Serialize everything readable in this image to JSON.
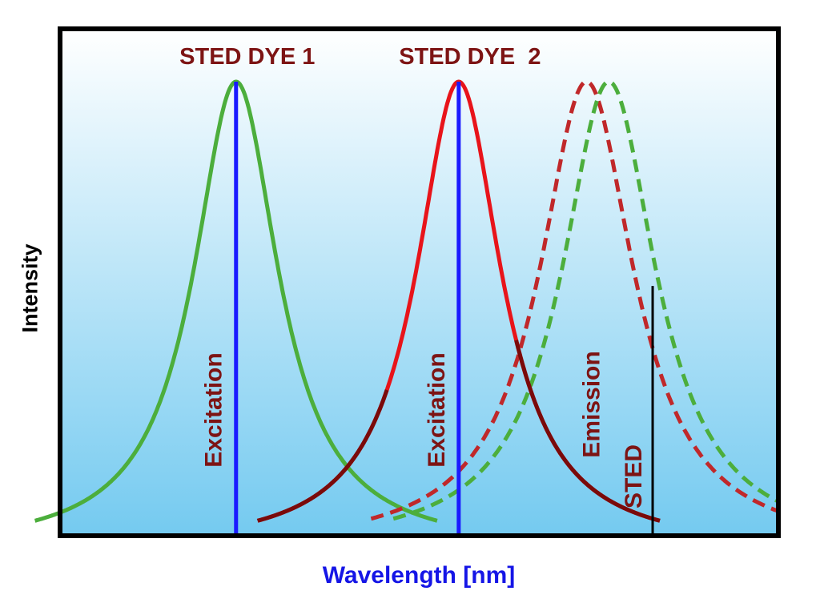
{
  "chart_data": {
    "type": "line",
    "title": "",
    "xlabel": "Wavelength [nm]",
    "ylabel": "Intensity",
    "xlim": [
      0,
      100
    ],
    "ylim": [
      0,
      100
    ],
    "grid": false,
    "legend": "none",
    "colors": {
      "background_top": "#ffffff",
      "background_bottom": "#74caf0",
      "axis": "#000000",
      "dye1": "#4cae3c",
      "dye2_absorption": "#e8141a",
      "dye2_tail": "#7a0a0a",
      "dye2_emission": "#c0282a",
      "dye1_emission": "#4cae3c",
      "laser": "#1a1aff",
      "sted_line": "#000000",
      "label": "#7d1414",
      "xlabel": "#1515e6"
    },
    "series": [
      {
        "name": "STED DYE 1 absorption",
        "style": "solid",
        "peak_x": 24.5,
        "peak_y": 100,
        "width": 7.2
      },
      {
        "name": "STED DYE 2 absorption",
        "style": "solid",
        "peak_x": 55.5,
        "peak_y": 100,
        "width": 7.2
      },
      {
        "name": "STED DYE 2 emission",
        "style": "dashed",
        "peak_x": 73.3,
        "peak_y": 100,
        "width": 8.0
      },
      {
        "name": "STED DYE 1 emission",
        "style": "dashed",
        "peak_x": 76.4,
        "peak_y": 100,
        "width": 8.0
      }
    ],
    "dye_labels": [
      {
        "text": "STED DYE 1",
        "x": 24.5
      },
      {
        "text": "STED DYE  2",
        "x": 55.5
      }
    ],
    "lines": [
      {
        "label": "Excitation",
        "x": 24.5,
        "height": 100
      },
      {
        "label": "Excitation",
        "x": 55.5,
        "height": 100
      },
      {
        "label": "STED",
        "x": 82.5,
        "height": 50
      }
    ],
    "annotations": [
      {
        "text": "Emission",
        "x": 74.2,
        "y": 37
      }
    ]
  }
}
